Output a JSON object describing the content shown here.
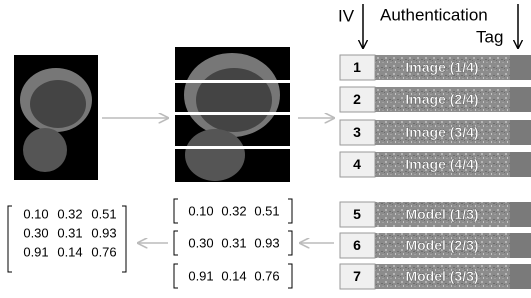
{
  "header": {
    "iv": "IV",
    "auth": "Authentication",
    "tag": "Tag"
  },
  "blocks": [
    {
      "index": "1",
      "label": "Image (1/4)"
    },
    {
      "index": "2",
      "label": "Image (2/4)"
    },
    {
      "index": "3",
      "label": "Image (3/4)"
    },
    {
      "index": "4",
      "label": "Image (4/4)"
    },
    {
      "index": "5",
      "label": "Model (1/3)"
    },
    {
      "index": "6",
      "label": "Model (2/3)"
    },
    {
      "index": "7",
      "label": "Model (3/3)"
    }
  ],
  "matrix": {
    "rows": [
      [
        "0.10",
        "0.32",
        "0.51"
      ],
      [
        "0.30",
        "0.31",
        "0.93"
      ],
      [
        "0.91",
        "0.14",
        "0.76"
      ]
    ]
  },
  "split_matrix": {
    "rows": [
      [
        "0.10",
        "0.32",
        "0.51"
      ],
      [
        "0.30",
        "0.31",
        "0.93"
      ],
      [
        "0.91",
        "0.14",
        "0.76"
      ]
    ]
  }
}
